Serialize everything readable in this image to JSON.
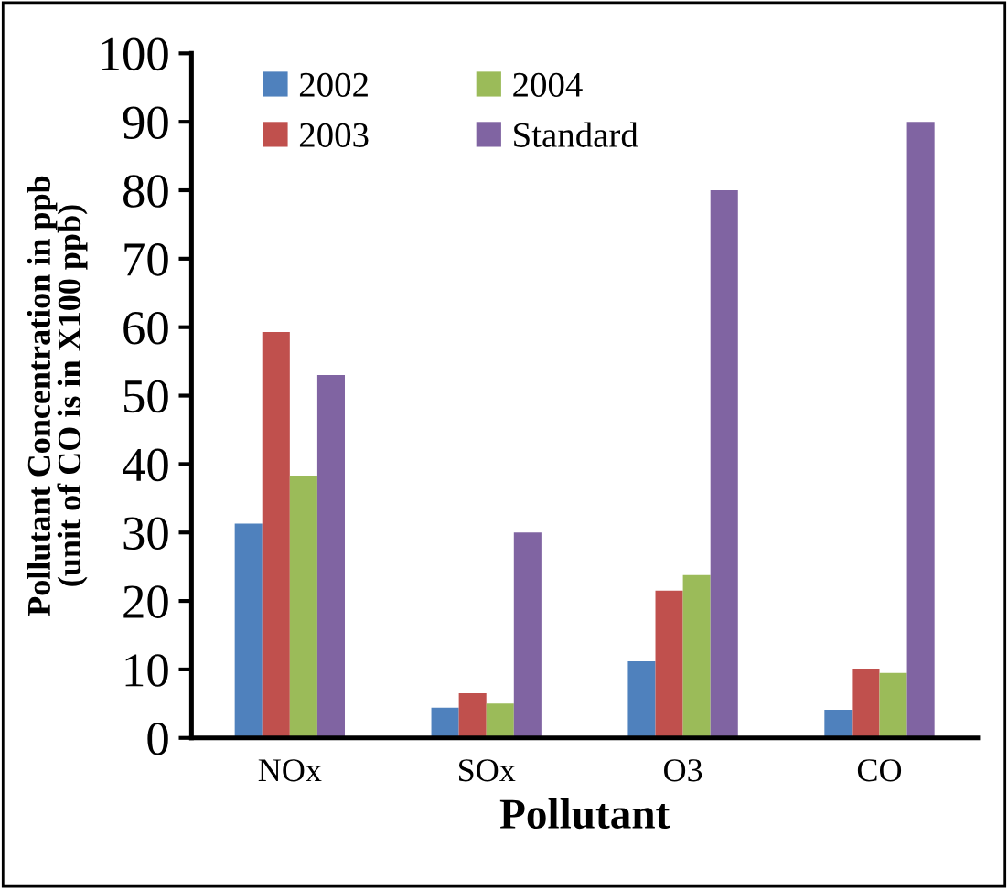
{
  "chart_data": {
    "type": "bar",
    "xlabel": "Pollutant",
    "ylabel": "Pollutant Concentration in ppb\n(unit of CO is in X100 ppb)",
    "categories": [
      "NOx",
      "SOx",
      "O3",
      "CO"
    ],
    "series": [
      {
        "name": "2002",
        "color": "#4f81bd",
        "values": [
          31.3,
          4.4,
          11.2,
          4.1
        ]
      },
      {
        "name": "2003",
        "color": "#c0504d",
        "values": [
          59.3,
          6.5,
          21.5,
          10.0
        ]
      },
      {
        "name": "2004",
        "color": "#9bbb59",
        "values": [
          38.3,
          5.0,
          23.8,
          9.5
        ]
      },
      {
        "name": "Standard",
        "color": "#8064a2",
        "values": [
          53,
          30,
          80,
          90
        ]
      }
    ],
    "ylim": [
      0,
      100
    ],
    "yticks": [
      0,
      10,
      20,
      30,
      40,
      50,
      60,
      70,
      80,
      90,
      100
    ],
    "grid": false,
    "legend": "top left"
  }
}
